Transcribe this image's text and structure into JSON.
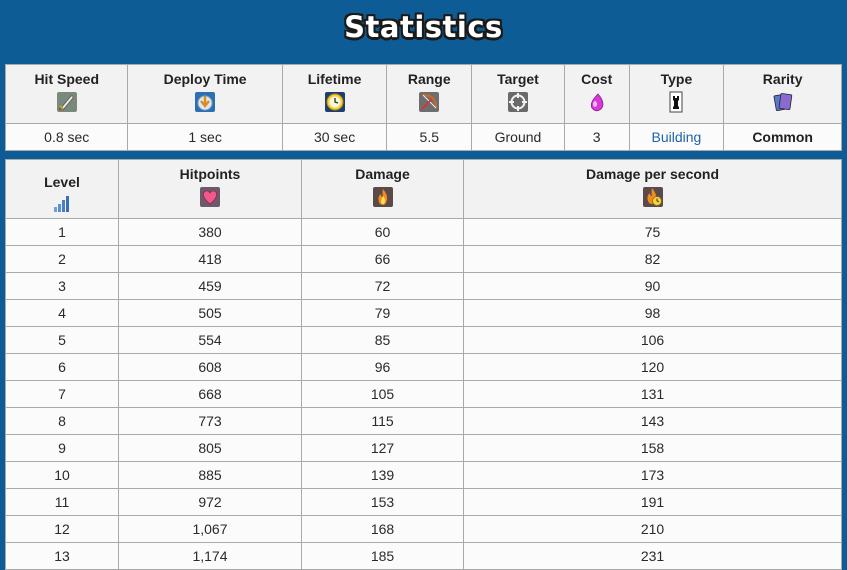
{
  "title": "Statistics",
  "summary": {
    "headers": {
      "hit_speed": "Hit Speed",
      "deploy_time": "Deploy Time",
      "lifetime": "Lifetime",
      "range": "Range",
      "target": "Target",
      "cost": "Cost",
      "type": "Type",
      "rarity": "Rarity"
    },
    "values": {
      "hit_speed": "0.8 sec",
      "deploy_time": "1 sec",
      "lifetime": "30 sec",
      "range": "5.5",
      "target": "Ground",
      "cost": "3",
      "type": "Building",
      "rarity": "Common"
    }
  },
  "levels": {
    "headers": {
      "level": "Level",
      "hitpoints": "Hitpoints",
      "damage": "Damage",
      "dps": "Damage per second"
    },
    "rows": [
      {
        "level": "1",
        "hitpoints": "380",
        "damage": "60",
        "dps": "75"
      },
      {
        "level": "2",
        "hitpoints": "418",
        "damage": "66",
        "dps": "82"
      },
      {
        "level": "3",
        "hitpoints": "459",
        "damage": "72",
        "dps": "90"
      },
      {
        "level": "4",
        "hitpoints": "505",
        "damage": "79",
        "dps": "98"
      },
      {
        "level": "5",
        "hitpoints": "554",
        "damage": "85",
        "dps": "106"
      },
      {
        "level": "6",
        "hitpoints": "608",
        "damage": "96",
        "dps": "120"
      },
      {
        "level": "7",
        "hitpoints": "668",
        "damage": "105",
        "dps": "131"
      },
      {
        "level": "8",
        "hitpoints": "773",
        "damage": "115",
        "dps": "143"
      },
      {
        "level": "9",
        "hitpoints": "805",
        "damage": "127",
        "dps": "158"
      },
      {
        "level": "10",
        "hitpoints": "885",
        "damage": "139",
        "dps": "173"
      },
      {
        "level": "11",
        "hitpoints": "972",
        "damage": "153",
        "dps": "191"
      },
      {
        "level": "12",
        "hitpoints": "1,067",
        "damage": "168",
        "dps": "210"
      },
      {
        "level": "13",
        "hitpoints": "1,174",
        "damage": "185",
        "dps": "231"
      }
    ]
  },
  "icons": {
    "hit_speed": "sword-icon",
    "deploy_time": "deploy-arrow-icon",
    "lifetime": "clock-icon",
    "range": "bow-icon",
    "target": "crosshair-icon",
    "cost": "elixir-drop-icon",
    "type": "tower-icon",
    "rarity": "cards-icon",
    "level": "signal-bars-icon",
    "hitpoints": "heart-icon",
    "damage": "flame-icon",
    "dps": "flame-clock-icon"
  },
  "colors": {
    "background": "#0e5c96",
    "link": "#1f63ad",
    "elixir": "#d63ad6"
  }
}
